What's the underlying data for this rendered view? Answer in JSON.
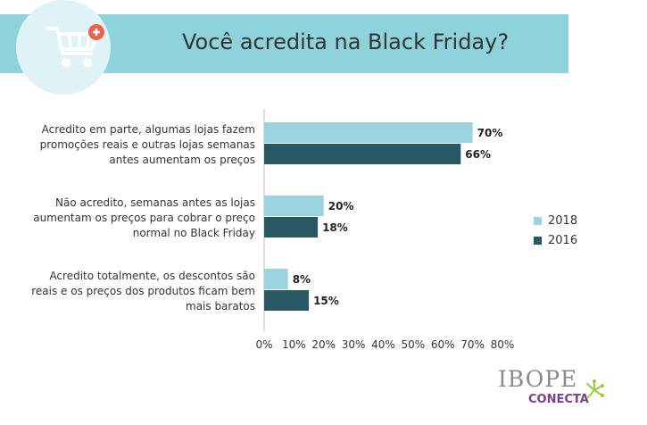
{
  "header": {
    "title": "Você acredita na Black Friday?",
    "icon": "shopping-cart-add-icon"
  },
  "colors": {
    "header_band": "#8ed3db",
    "series_2018": "#9bd4df",
    "series_2016": "#275863"
  },
  "chart_data": {
    "type": "bar",
    "orientation": "horizontal",
    "title": "Você acredita na Black Friday?",
    "categories": [
      [
        "Acredito em parte, algumas lojas fazem",
        "promoções reais e outras lojas semanas",
        "antes aumentam os preços"
      ],
      [
        "Não acredito, semanas antes as lojas",
        "aumentam os preços para cobrar o preço",
        "normal no Black Friday"
      ],
      [
        "Acredito totalmente, os descontos são",
        "reais e os preços dos produtos ficam bem",
        "mais baratos"
      ]
    ],
    "series": [
      {
        "name": "2018",
        "values": [
          70,
          20,
          8
        ],
        "labels": [
          "70%",
          "20%",
          "8%"
        ]
      },
      {
        "name": "2016",
        "values": [
          66,
          18,
          15
        ],
        "labels": [
          "66%",
          "18%",
          "15%"
        ]
      }
    ],
    "xlim": [
      0,
      80
    ],
    "x_ticks": [
      "0%",
      "10%",
      "20%",
      "30%",
      "40%",
      "50%",
      "60%",
      "70%",
      "80%"
    ],
    "legend_position": "right",
    "grid": false
  },
  "legend": {
    "items": [
      {
        "label": "2018"
      },
      {
        "label": "2016"
      }
    ]
  },
  "logo": {
    "main": "IBOPE",
    "sub": "CONECTA"
  }
}
